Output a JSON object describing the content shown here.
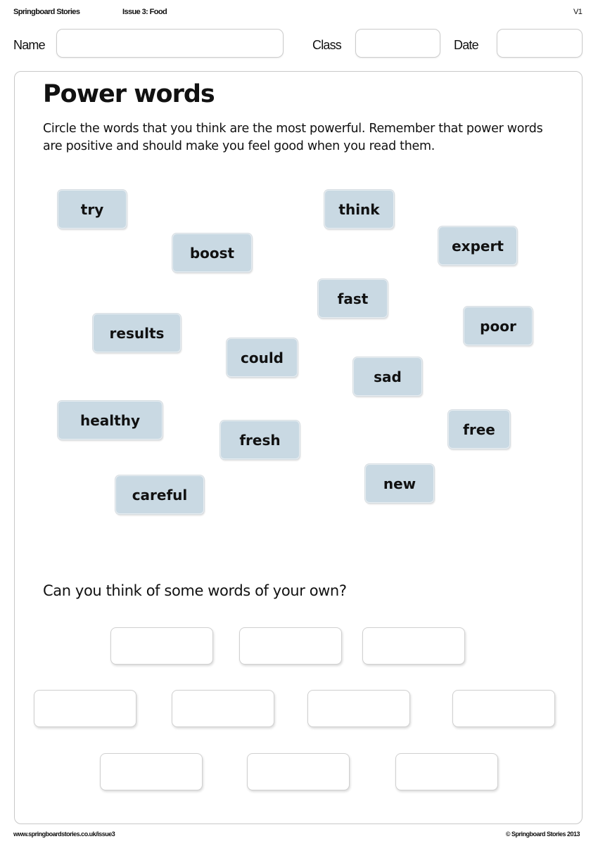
{
  "header": {
    "publisher": "Springboard Stories",
    "issue": "Issue 3: Food",
    "version": "V1",
    "name_label": "Name",
    "class_label": "Class",
    "date_label": "Date",
    "name_value": "",
    "class_value": "",
    "date_value": ""
  },
  "worksheet": {
    "title": "Power words",
    "instructions": "Circle the words that you think are the most powerful. Remember that power words are positive and should make you feel good when you read them.",
    "words": [
      "try",
      "think",
      "boost",
      "expert",
      "fast",
      "results",
      "poor",
      "could",
      "sad",
      "healthy",
      "fresh",
      "free",
      "careful",
      "new"
    ],
    "question": "Can you think of some words of your own?",
    "tile_color": "#c9d9e3"
  },
  "footer": {
    "url": "www.springboardstories.co.uk/issue3",
    "copyright": "© Springboard Stories 2013"
  }
}
